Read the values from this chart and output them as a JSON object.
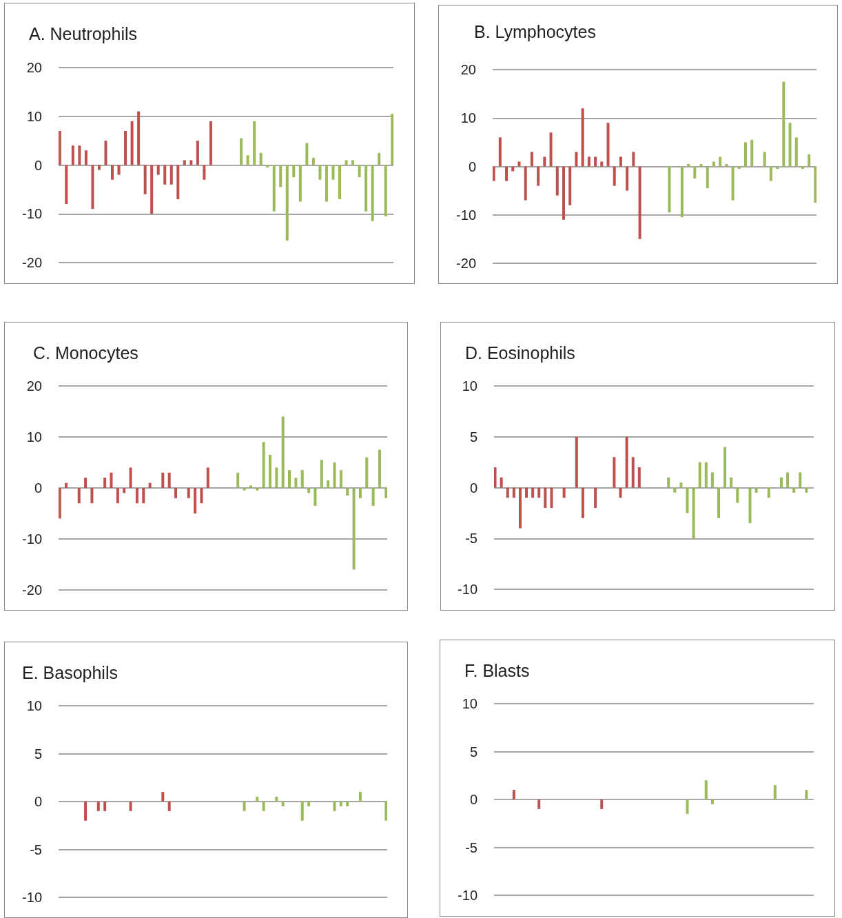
{
  "chart_data": [
    {
      "type": "bar",
      "title": "A. Neutrophils",
      "categories": [
        null,
        null,
        null,
        null,
        null,
        null,
        null,
        null,
        null,
        null,
        null,
        null,
        null,
        null,
        null,
        null,
        null,
        null,
        null,
        null,
        null,
        null,
        null,
        null,
        null,
        null,
        null,
        null,
        null,
        null,
        null,
        null,
        null,
        null,
        null,
        null,
        null,
        null,
        null,
        null,
        null,
        null,
        null,
        null,
        null,
        null,
        null,
        null,
        null,
        null,
        null
      ],
      "ylim": [
        -20,
        20
      ],
      "yticks": [
        -20,
        -10,
        0,
        10,
        20
      ],
      "grid": "y",
      "tick_labels": "y",
      "series": [
        {
          "color": "#c0504d",
          "values": [
            7,
            -8,
            4,
            4,
            3,
            -9,
            -1,
            5,
            -3,
            -2,
            7,
            9,
            11,
            -6,
            -10,
            -2,
            -4,
            -4,
            -7,
            1,
            1,
            5,
            -3,
            9,
            null,
            null,
            null,
            null,
            null,
            null,
            null,
            null,
            null,
            null,
            null,
            null,
            null,
            null,
            null,
            null,
            null,
            null,
            null,
            null,
            null,
            null,
            null,
            null,
            null,
            null,
            null
          ]
        },
        {
          "color": "#9bbb59",
          "values": [
            null,
            null,
            null,
            null,
            null,
            null,
            null,
            null,
            null,
            null,
            null,
            null,
            null,
            null,
            null,
            null,
            null,
            null,
            null,
            null,
            null,
            null,
            null,
            null,
            null,
            null,
            null,
            5.5,
            2,
            9,
            2.5,
            -0.5,
            -9.5,
            -4.5,
            -15.5,
            -2.5,
            -7.5,
            4.5,
            1.5,
            -3,
            -7.5,
            -3,
            -7,
            1,
            1,
            -2.5,
            -9.5,
            -11.5,
            2.5,
            -10.5,
            10.5
          ]
        }
      ]
    },
    {
      "type": "bar",
      "title": "B. Lymphocytes",
      "categories": [
        null,
        null,
        null,
        null,
        null,
        null,
        null,
        null,
        null,
        null,
        null,
        null,
        null,
        null,
        null,
        null,
        null,
        null,
        null,
        null,
        null,
        null,
        null,
        null,
        null,
        null,
        null,
        null,
        null,
        null,
        null,
        null,
        null,
        null,
        null,
        null,
        null,
        null,
        null,
        null,
        null,
        null,
        null,
        null,
        null,
        null,
        null,
        null,
        null,
        null,
        null
      ],
      "ylim": [
        -20,
        20
      ],
      "yticks": [
        -20,
        -10,
        0,
        10,
        20
      ],
      "grid": "y",
      "tick_labels": "y",
      "series": [
        {
          "color": "#c0504d",
          "values": [
            -3,
            6,
            -3,
            -1,
            1,
            -7,
            3,
            -4,
            2,
            7,
            -6,
            -11,
            -8,
            3,
            12,
            2,
            2,
            1,
            9,
            -4,
            2,
            -5,
            3,
            -15,
            null,
            null,
            null,
            null,
            null,
            null,
            null,
            null,
            null,
            null,
            null,
            null,
            null,
            null,
            null,
            null,
            null,
            null,
            null,
            null,
            null,
            null,
            null,
            null,
            null,
            null,
            null
          ]
        },
        {
          "color": "#9bbb59",
          "values": [
            null,
            null,
            null,
            null,
            null,
            null,
            null,
            null,
            null,
            null,
            null,
            null,
            null,
            null,
            null,
            null,
            null,
            null,
            null,
            null,
            null,
            null,
            null,
            null,
            null,
            null,
            null,
            -9.5,
            null,
            -10.5,
            0.5,
            -2.5,
            0.5,
            -4.5,
            1,
            2,
            0.5,
            -7,
            -0.5,
            5,
            5.5,
            null,
            3,
            -3,
            -0.5,
            17.5,
            9,
            6,
            -0.5,
            2.5,
            -7.5
          ]
        }
      ]
    },
    {
      "type": "bar",
      "title": "C. Monocytes",
      "categories": [
        null,
        null,
        null,
        null,
        null,
        null,
        null,
        null,
        null,
        null,
        null,
        null,
        null,
        null,
        null,
        null,
        null,
        null,
        null,
        null,
        null,
        null,
        null,
        null,
        null,
        null,
        null,
        null,
        null,
        null,
        null,
        null,
        null,
        null,
        null,
        null,
        null,
        null,
        null,
        null,
        null,
        null,
        null,
        null,
        null,
        null,
        null,
        null,
        null,
        null,
        null
      ],
      "ylim": [
        -20,
        20
      ],
      "yticks": [
        -20,
        -10,
        0,
        10,
        20
      ],
      "grid": "y",
      "tick_labels": "y",
      "series": [
        {
          "color": "#c0504d",
          "values": [
            -6,
            1,
            null,
            -3,
            2,
            -3,
            null,
            2,
            3,
            -3,
            -1,
            4,
            -3,
            -3,
            1,
            null,
            3,
            3,
            -2,
            null,
            -2,
            -5,
            -3,
            4,
            null,
            null,
            null,
            null,
            null,
            null,
            null,
            null,
            null,
            null,
            null,
            null,
            null,
            null,
            null,
            null,
            null,
            null,
            null,
            null,
            null,
            null,
            null,
            null,
            null,
            null,
            null
          ]
        },
        {
          "color": "#9bbb59",
          "values": [
            null,
            null,
            null,
            null,
            null,
            null,
            null,
            null,
            null,
            null,
            null,
            null,
            null,
            null,
            null,
            null,
            null,
            null,
            null,
            null,
            null,
            null,
            null,
            null,
            null,
            null,
            null,
            3,
            -0.5,
            0.5,
            -0.5,
            9,
            6.5,
            4,
            14,
            3.5,
            2,
            3.5,
            -1,
            -3.5,
            5.5,
            1.5,
            5,
            3.5,
            -1.5,
            -16,
            -2,
            6,
            -3.5,
            7.5,
            -2
          ]
        }
      ]
    },
    {
      "type": "bar",
      "title": "D. Eosinophils",
      "categories": [
        null,
        null,
        null,
        null,
        null,
        null,
        null,
        null,
        null,
        null,
        null,
        null,
        null,
        null,
        null,
        null,
        null,
        null,
        null,
        null,
        null,
        null,
        null,
        null,
        null,
        null,
        null,
        null,
        null,
        null,
        null,
        null,
        null,
        null,
        null,
        null,
        null,
        null,
        null,
        null,
        null,
        null,
        null,
        null,
        null,
        null,
        null,
        null,
        null,
        null,
        null
      ],
      "ylim": [
        -10,
        10
      ],
      "yticks": [
        -10,
        -5,
        0,
        5,
        10
      ],
      "grid": "y",
      "tick_labels": "y",
      "series": [
        {
          "color": "#c0504d",
          "values": [
            2,
            1,
            -1,
            -1,
            -4,
            -1,
            -1,
            -1,
            -2,
            -2,
            null,
            -1,
            null,
            5,
            -3,
            null,
            -2,
            null,
            null,
            3,
            -1,
            5,
            3,
            2,
            null,
            null,
            null,
            null,
            null,
            null,
            null,
            null,
            null,
            null,
            null,
            null,
            null,
            null,
            null,
            null,
            null,
            null,
            null,
            null,
            null,
            null,
            null,
            null,
            null,
            null,
            null
          ]
        },
        {
          "color": "#9bbb59",
          "values": [
            null,
            null,
            null,
            null,
            null,
            null,
            null,
            null,
            null,
            null,
            null,
            null,
            null,
            null,
            null,
            null,
            null,
            null,
            null,
            null,
            null,
            null,
            null,
            null,
            null,
            null,
            null,
            1,
            -0.5,
            0.5,
            -2.5,
            -5,
            2.5,
            2.5,
            1.5,
            -3,
            4,
            1,
            -1.5,
            null,
            -3.5,
            -0.5,
            null,
            -1,
            null,
            1,
            1.5,
            -0.5,
            1.5,
            -0.5,
            null
          ]
        }
      ]
    },
    {
      "type": "bar",
      "title": "E. Basophils",
      "categories": [
        null,
        null,
        null,
        null,
        null,
        null,
        null,
        null,
        null,
        null,
        null,
        null,
        null,
        null,
        null,
        null,
        null,
        null,
        null,
        null,
        null,
        null,
        null,
        null,
        null,
        null,
        null,
        null,
        null,
        null,
        null,
        null,
        null,
        null,
        null,
        null,
        null,
        null,
        null,
        null,
        null,
        null,
        null,
        null,
        null,
        null,
        null,
        null,
        null,
        null,
        null
      ],
      "ylim": [
        -10,
        10
      ],
      "yticks": [
        -10,
        -5,
        0,
        5,
        10
      ],
      "grid": "y",
      "tick_labels": "y",
      "series": [
        {
          "color": "#c0504d",
          "values": [
            null,
            null,
            null,
            null,
            -2,
            null,
            -1,
            -1,
            null,
            null,
            null,
            -1,
            null,
            null,
            null,
            null,
            1,
            -1,
            null,
            null,
            null,
            null,
            null,
            null,
            null,
            null,
            null,
            null,
            null,
            null,
            null,
            null,
            null,
            null,
            null,
            null,
            null,
            null,
            null,
            null,
            null,
            null,
            null,
            null,
            null,
            null,
            null,
            null,
            null,
            null,
            null
          ]
        },
        {
          "color": "#9bbb59",
          "values": [
            null,
            null,
            null,
            null,
            null,
            null,
            null,
            null,
            null,
            null,
            null,
            null,
            null,
            null,
            null,
            null,
            null,
            null,
            null,
            null,
            null,
            null,
            null,
            null,
            null,
            null,
            null,
            null,
            -1,
            null,
            0.5,
            -1,
            null,
            0.5,
            -0.5,
            null,
            null,
            -2,
            -0.5,
            null,
            null,
            null,
            -1,
            -0.5,
            -0.5,
            null,
            1,
            null,
            null,
            null,
            -2
          ]
        }
      ]
    },
    {
      "type": "bar",
      "title": "F. Blasts",
      "categories": [
        null,
        null,
        null,
        null,
        null,
        null,
        null,
        null,
        null,
        null,
        null,
        null,
        null,
        null,
        null,
        null,
        null,
        null,
        null,
        null,
        null,
        null,
        null,
        null,
        null,
        null,
        null,
        null,
        null,
        null,
        null,
        null,
        null,
        null,
        null,
        null,
        null,
        null,
        null,
        null,
        null,
        null,
        null,
        null,
        null,
        null,
        null,
        null,
        null,
        null,
        null
      ],
      "ylim": [
        -10,
        10
      ],
      "yticks": [
        -10,
        -5,
        0,
        5,
        10
      ],
      "grid": "y",
      "tick_labels": "y",
      "series": [
        {
          "color": "#c0504d",
          "values": [
            null,
            null,
            null,
            1,
            null,
            null,
            null,
            -1,
            null,
            null,
            null,
            null,
            null,
            null,
            null,
            null,
            null,
            -1,
            null,
            null,
            null,
            null,
            null,
            null,
            null,
            null,
            null,
            null,
            null,
            null,
            null,
            null,
            null,
            null,
            null,
            null,
            null,
            null,
            null,
            null,
            null,
            null,
            null,
            null,
            null,
            null,
            null,
            null,
            null,
            null,
            null
          ]
        },
        {
          "color": "#9bbb59",
          "values": [
            null,
            null,
            null,
            null,
            null,
            null,
            null,
            null,
            null,
            null,
            null,
            null,
            null,
            null,
            null,
            null,
            null,
            null,
            null,
            null,
            null,
            null,
            null,
            null,
            null,
            null,
            null,
            null,
            null,
            null,
            -1.5,
            null,
            null,
            2,
            -0.5,
            null,
            null,
            null,
            null,
            null,
            null,
            null,
            null,
            null,
            1.5,
            null,
            null,
            null,
            null,
            1,
            null
          ]
        }
      ]
    }
  ]
}
